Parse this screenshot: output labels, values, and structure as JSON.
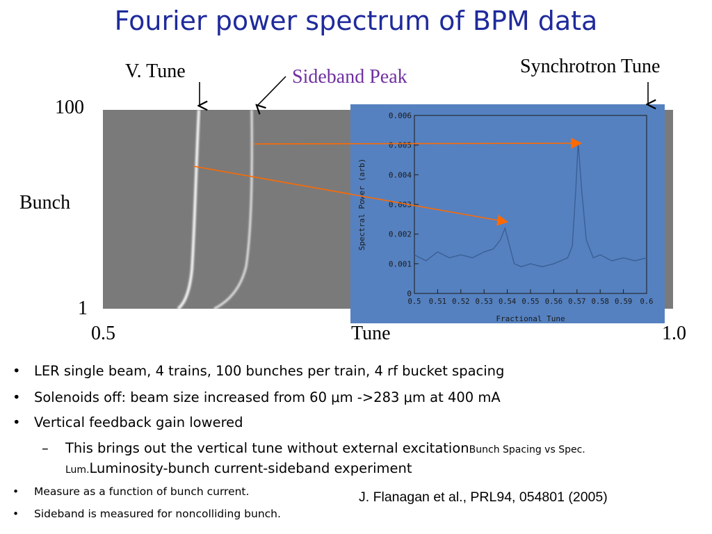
{
  "title": "Fourier power spectrum of BPM data",
  "labels": {
    "v_tune": "V. Tune",
    "sideband_peak": "Sideband Peak",
    "synchrotron_tune": "Synchrotron Tune",
    "y_axis": "Bunch",
    "y_max": "100",
    "y_min": "1",
    "x_axis": "Tune",
    "x_min": "0.5",
    "x_max": "1.0"
  },
  "colors": {
    "title": "#1f2a9c",
    "sideband_label": "#7030a0",
    "inset_background": "#5581c0",
    "arrow_orange": "#ff6a00"
  },
  "chart_data": [
    {
      "type": "heatmap",
      "title": "",
      "xlabel": "Tune",
      "ylabel": "Bunch",
      "xlim": [
        0.5,
        1.0
      ],
      "ylim": [
        1,
        100
      ],
      "x_tick_labels": [
        "0.5",
        "1.0"
      ],
      "y_tick_labels": [
        "1",
        "100"
      ]
    },
    {
      "type": "line",
      "title": "",
      "xlabel": "Fractional Tune",
      "ylabel": "Spectral Power (arb)",
      "xlim": [
        0.5,
        0.6
      ],
      "ylim": [
        0,
        0.006
      ],
      "x_ticks": [
        0.5,
        0.51,
        0.52,
        0.53,
        0.54,
        0.55,
        0.56,
        0.57,
        0.58,
        0.59,
        0.6
      ],
      "x_tick_labels": [
        "0.5",
        "0.51",
        "0.52",
        "0.53",
        "0.54",
        "0.55",
        "0.56",
        "0.57",
        "0.58",
        "0.59",
        "0.6"
      ],
      "y_ticks": [
        0,
        0.001,
        0.002,
        0.003,
        0.004,
        0.005,
        0.006
      ],
      "y_tick_labels": [
        "0",
        "0.001",
        "0.002",
        "0.003",
        "0.004",
        "0.005",
        "0.006"
      ],
      "series": [
        {
          "x": [
            0.5,
            0.505,
            0.51,
            0.515,
            0.52,
            0.525,
            0.53,
            0.534,
            0.537,
            0.539,
            0.541,
            0.543,
            0.546,
            0.55,
            0.555,
            0.56,
            0.563,
            0.566,
            0.568,
            0.5695,
            0.5705,
            0.572,
            0.574,
            0.577,
            0.58,
            0.585,
            0.59,
            0.595,
            0.6
          ],
          "values": [
            0.0013,
            0.0011,
            0.0014,
            0.0012,
            0.0013,
            0.0012,
            0.0014,
            0.0015,
            0.0018,
            0.0022,
            0.0016,
            0.001,
            0.0009,
            0.001,
            0.0009,
            0.001,
            0.0011,
            0.0012,
            0.0016,
            0.0035,
            0.0051,
            0.0035,
            0.0018,
            0.0012,
            0.0013,
            0.0011,
            0.0012,
            0.0011,
            0.0012
          ]
        }
      ]
    }
  ],
  "bullets": [
    {
      "marker": "•",
      "text": "LER single beam, 4 trains, 100 bunches per train, 4 rf bucket spacing"
    },
    {
      "marker": "•",
      "text": "Solenoids off:  beam size increased from 60 μm ->283 μm at 400 mA"
    },
    {
      "marker": "•",
      "text": "Vertical feedback gain lowered"
    },
    {
      "marker": "–",
      "text": "This brings out the vertical tune without external excitation",
      "inline_small_1": "Bunch Spacing vs Spec.",
      "inline_small_2": "Lum.",
      "line2": "Luminosity-bunch current-sideband experiment"
    },
    {
      "marker": "•",
      "text": "Measure as a function of bunch current."
    },
    {
      "marker": "•",
      "text": "Sideband is measured for noncolliding bunch."
    }
  ],
  "citation": "J. Flanagan et al., PRL94, 054801 (2005)"
}
